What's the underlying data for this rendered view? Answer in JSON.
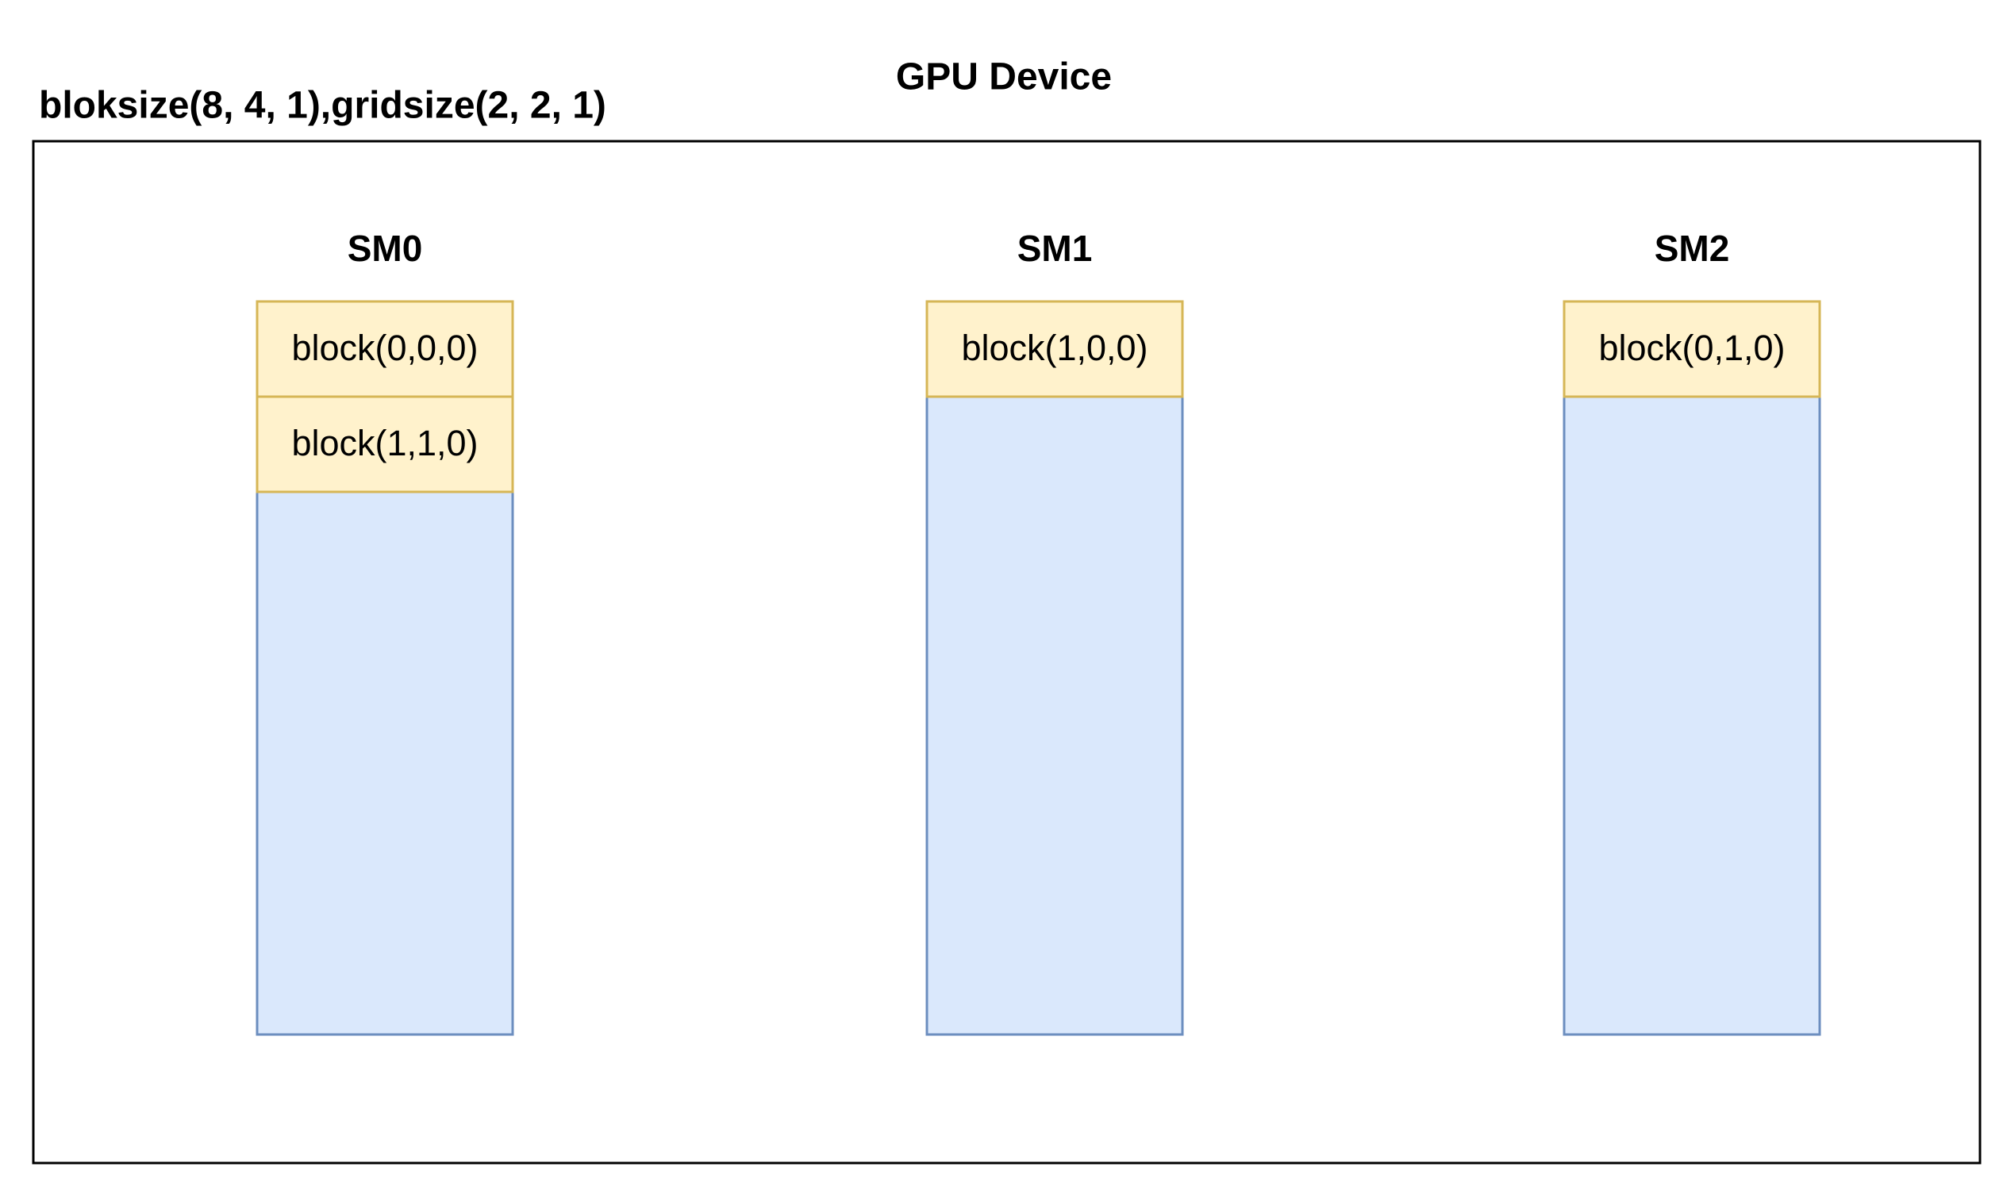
{
  "title": "GPU Device",
  "config": "bloksize(8, 4, 1),gridsize(2, 2, 1)",
  "sms": [
    {
      "label": "SM0",
      "blocks": [
        "block(0,0,0)",
        "block(1,1,0)"
      ]
    },
    {
      "label": "SM1",
      "blocks": [
        "block(1,0,0)"
      ]
    },
    {
      "label": "SM2",
      "blocks": [
        "block(0,1,0)"
      ]
    }
  ]
}
